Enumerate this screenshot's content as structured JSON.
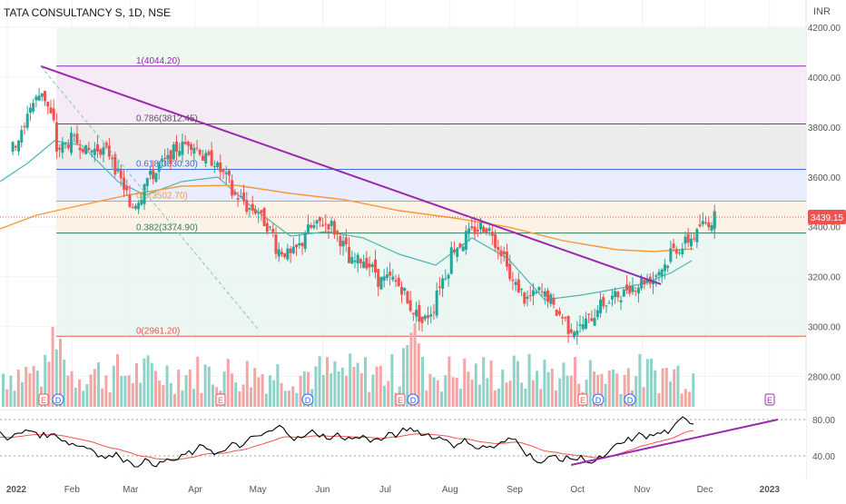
{
  "header": {
    "symbol_title": "TATA CONSULTANCY S, 1D, NSE",
    "currency": "INR"
  },
  "price_axis": {
    "ticks": [
      "4200.00",
      "4000.00",
      "3800.00",
      "3600.00",
      "3400.00",
      "3200.00",
      "3000.00",
      "2800.00"
    ]
  },
  "rsi_axis": {
    "ticks": [
      "80.00",
      "40.00"
    ]
  },
  "time_axis": {
    "labels": [
      "2022",
      "Feb",
      "Mar",
      "Apr",
      "May",
      "Jun",
      "Jul",
      "Aug",
      "Sep",
      "Oct",
      "Nov",
      "Dec",
      "2023"
    ]
  },
  "last_price_badge": "3439.15",
  "fib_labels": [
    "1(4044.20)",
    "0.786(3812.45)",
    "0.618(3630.30)",
    "0.5(3502.70)",
    "0.382(3374.90)",
    "0(2961.20)"
  ],
  "event_markers": [
    "E",
    "D",
    "E",
    "D",
    "E",
    "D",
    "E",
    "D",
    "D",
    "E"
  ],
  "colors": {
    "up": "#26a69a",
    "down": "#ef5350",
    "trendline": "#9c27b0",
    "ma_fast": "#4db6ac",
    "ma_slow": "#f59a3b",
    "rsi_line": "#000000",
    "rsi_signal": "#ef5350"
  },
  "chart_data": {
    "type": "candlestick",
    "title": "TATA CONSULTANCY S, 1D, NSE",
    "ylabel": "INR",
    "ylim": [
      2700,
      4280
    ],
    "xlim": [
      "2022-01-01",
      "2023-01-15"
    ],
    "fibonacci_retracement": [
      {
        "level": 1,
        "price": 4044.2
      },
      {
        "level": 0.786,
        "price": 3812.45
      },
      {
        "level": 0.618,
        "price": 3630.3
      },
      {
        "level": 0.5,
        "price": 3502.7
      },
      {
        "level": 0.382,
        "price": 3374.9
      },
      {
        "level": 0,
        "price": 2961.2
      }
    ],
    "last_price": 3439.15,
    "trendlines": [
      {
        "from": [
          "2022-01-17",
          4044
        ],
        "to": [
          "2022-11-10",
          3170
        ]
      },
      {
        "from": [
          "2022-01-17",
          4044
        ],
        "to": [
          "2022-05-01",
          2990
        ],
        "dashed": true
      }
    ],
    "closes_weekly": [
      {
        "x": "2022-01-03",
        "close": 3700
      },
      {
        "x": "2022-01-10",
        "close": 3850
      },
      {
        "x": "2022-01-17",
        "close": 3980
      },
      {
        "x": "2022-01-24",
        "close": 3700
      },
      {
        "x": "2022-01-31",
        "close": 3760
      },
      {
        "x": "2022-02-07",
        "close": 3700
      },
      {
        "x": "2022-02-14",
        "close": 3720
      },
      {
        "x": "2022-02-21",
        "close": 3660
      },
      {
        "x": "2022-02-28",
        "close": 3450
      },
      {
        "x": "2022-03-07",
        "close": 3580
      },
      {
        "x": "2022-03-14",
        "close": 3640
      },
      {
        "x": "2022-03-21",
        "close": 3700
      },
      {
        "x": "2022-03-28",
        "close": 3750
      },
      {
        "x": "2022-04-04",
        "close": 3680
      },
      {
        "x": "2022-04-11",
        "close": 3650
      },
      {
        "x": "2022-04-18",
        "close": 3540
      },
      {
        "x": "2022-04-25",
        "close": 3480
      },
      {
        "x": "2022-05-02",
        "close": 3450
      },
      {
        "x": "2022-05-09",
        "close": 3320
      },
      {
        "x": "2022-05-16",
        "close": 3270
      },
      {
        "x": "2022-05-23",
        "close": 3380
      },
      {
        "x": "2022-05-30",
        "close": 3420
      },
      {
        "x": "2022-06-06",
        "close": 3400
      },
      {
        "x": "2022-06-13",
        "close": 3250
      },
      {
        "x": "2022-06-20",
        "close": 3280
      },
      {
        "x": "2022-06-27",
        "close": 3180
      },
      {
        "x": "2022-07-04",
        "close": 3200
      },
      {
        "x": "2022-07-11",
        "close": 3100
      },
      {
        "x": "2022-07-18",
        "close": 3000
      },
      {
        "x": "2022-07-25",
        "close": 3130
      },
      {
        "x": "2022-08-01",
        "close": 3300
      },
      {
        "x": "2022-08-08",
        "close": 3360
      },
      {
        "x": "2022-08-15",
        "close": 3410
      },
      {
        "x": "2022-08-22",
        "close": 3360
      },
      {
        "x": "2022-08-29",
        "close": 3200
      },
      {
        "x": "2022-09-05",
        "close": 3100
      },
      {
        "x": "2022-09-12",
        "close": 3150
      },
      {
        "x": "2022-09-19",
        "close": 3080
      },
      {
        "x": "2022-09-26",
        "close": 2990
      },
      {
        "x": "2022-10-03",
        "close": 3000
      },
      {
        "x": "2022-10-10",
        "close": 3080
      },
      {
        "x": "2022-10-17",
        "close": 3110
      },
      {
        "x": "2022-10-24",
        "close": 3150
      },
      {
        "x": "2022-10-31",
        "close": 3180
      },
      {
        "x": "2022-11-07",
        "close": 3200
      },
      {
        "x": "2022-11-14",
        "close": 3300
      },
      {
        "x": "2022-11-21",
        "close": 3330
      },
      {
        "x": "2022-11-28",
        "close": 3400
      },
      {
        "x": "2022-12-05",
        "close": 3439
      }
    ],
    "rsi": {
      "levels": [
        80,
        40
      ],
      "trendline": {
        "from": [
          "2022-09-28",
          30
        ],
        "to": [
          "2023-01-05",
          80
        ]
      }
    }
  }
}
